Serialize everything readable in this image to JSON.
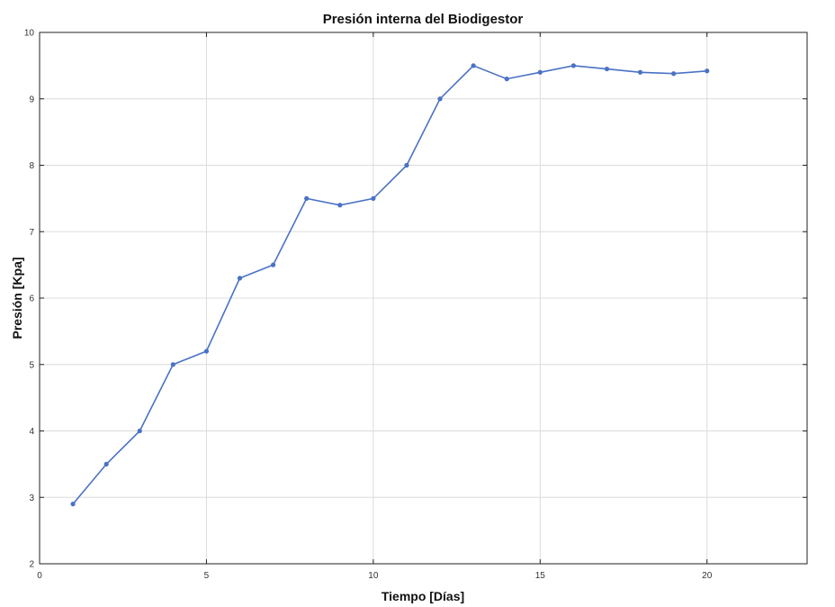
{
  "chart_data": {
    "type": "line",
    "title": "Presión interna del Biodigestor",
    "xlabel": "Tiempo [Días]",
    "ylabel": "Presión [Kpa]",
    "xlim": [
      0,
      23
    ],
    "ylim": [
      2,
      10
    ],
    "xticks": [
      0,
      5,
      10,
      15,
      20
    ],
    "yticks": [
      2,
      3,
      4,
      5,
      6,
      7,
      8,
      9,
      10
    ],
    "grid": true,
    "line_color": "#4a72c4",
    "series": [
      {
        "x": [
          1,
          2,
          3,
          4,
          5,
          6,
          7,
          8,
          9,
          10,
          11,
          12,
          13,
          14,
          15,
          16,
          17,
          18,
          19,
          20
        ],
        "values": [
          2.9,
          3.5,
          4.0,
          5.0,
          5.2,
          6.3,
          6.5,
          7.5,
          7.4,
          7.5,
          8.0,
          9.0,
          9.5,
          9.3,
          9.4,
          9.5,
          9.45,
          9.4,
          9.38,
          9.42
        ]
      }
    ]
  }
}
